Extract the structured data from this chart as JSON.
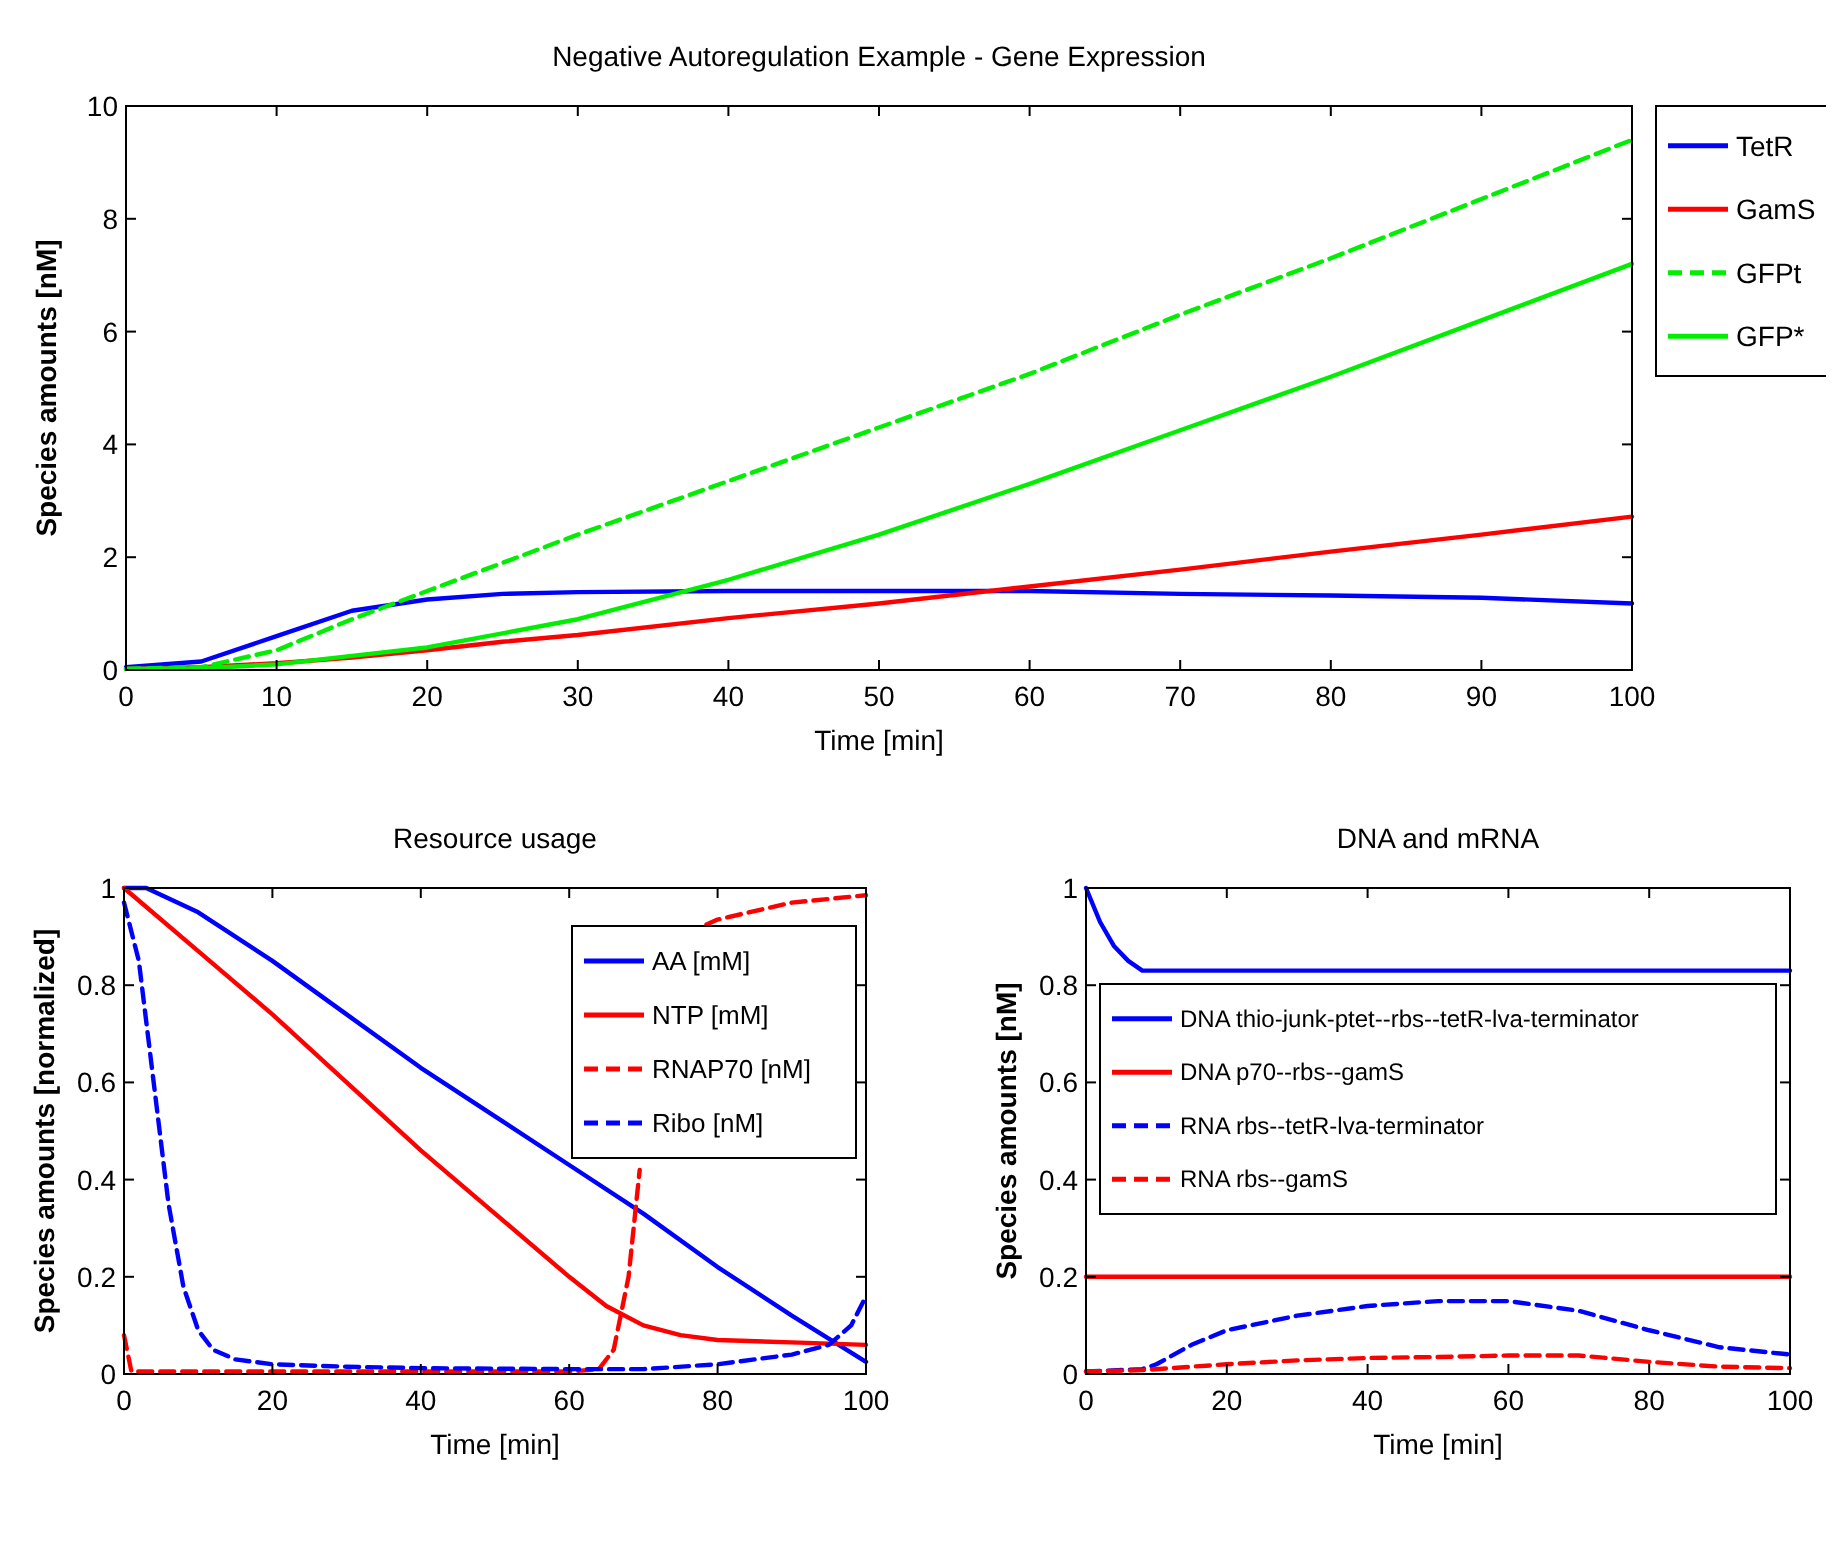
{
  "chart_data": [
    {
      "type": "line",
      "title": "Negative Autoregulation Example - Gene Expression",
      "xlabel": "Time [min]",
      "ylabel": "Species amounts [nM]",
      "xlim": [
        0,
        100
      ],
      "ylim": [
        0,
        10
      ],
      "xticks": [
        0,
        10,
        20,
        30,
        40,
        50,
        60,
        70,
        80,
        90,
        100
      ],
      "yticks": [
        0,
        2,
        4,
        6,
        8,
        10
      ],
      "legend": "right",
      "grid": false,
      "series": [
        {
          "name": "TetR",
          "color": "#0000ff",
          "line_style": "solid",
          "x": [
            0,
            5,
            10,
            15,
            20,
            25,
            30,
            40,
            50,
            60,
            70,
            80,
            90,
            100
          ],
          "values": [
            0.05,
            0.15,
            0.6,
            1.05,
            1.25,
            1.35,
            1.38,
            1.4,
            1.4,
            1.4,
            1.35,
            1.32,
            1.28,
            1.18
          ]
        },
        {
          "name": "GamS",
          "color": "#ff0000",
          "line_style": "solid",
          "x": [
            0,
            5,
            10,
            15,
            20,
            25,
            30,
            40,
            50,
            60,
            70,
            80,
            90,
            100
          ],
          "values": [
            0.02,
            0.05,
            0.12,
            0.22,
            0.35,
            0.5,
            0.62,
            0.92,
            1.18,
            1.48,
            1.78,
            2.1,
            2.4,
            2.72
          ]
        },
        {
          "name": "GFPt",
          "color": "#00ee00",
          "line_style": "dashed",
          "x": [
            0,
            5,
            10,
            15,
            20,
            25,
            30,
            40,
            50,
            60,
            70,
            80,
            90,
            100
          ],
          "values": [
            0.02,
            0.05,
            0.35,
            0.9,
            1.4,
            1.9,
            2.4,
            3.35,
            4.3,
            5.25,
            6.3,
            7.3,
            8.35,
            9.4
          ]
        },
        {
          "name": "GFP*",
          "color": "#00ee00",
          "line_style": "solid",
          "x": [
            0,
            5,
            10,
            15,
            20,
            25,
            30,
            40,
            50,
            60,
            70,
            80,
            90,
            100
          ],
          "values": [
            0.02,
            0.03,
            0.1,
            0.25,
            0.4,
            0.65,
            0.9,
            1.6,
            2.4,
            3.3,
            4.25,
            5.2,
            6.2,
            7.2
          ]
        }
      ]
    },
    {
      "type": "line",
      "title": "Resource usage",
      "xlabel": "Time [min]",
      "ylabel": "Species amounts [normalized]",
      "xlim": [
        0,
        100
      ],
      "ylim": [
        0,
        1
      ],
      "xticks": [
        0,
        20,
        40,
        60,
        80,
        100
      ],
      "yticks": [
        0,
        0.2,
        0.4,
        0.6,
        0.8,
        1
      ],
      "legend": "top right",
      "grid": false,
      "series": [
        {
          "name": "AA [mM]",
          "color": "#0000ff",
          "line_style": "solid",
          "x": [
            0,
            3,
            10,
            20,
            30,
            40,
            50,
            60,
            70,
            80,
            90,
            100
          ],
          "values": [
            1,
            1,
            0.95,
            0.85,
            0.74,
            0.63,
            0.53,
            0.43,
            0.33,
            0.22,
            0.12,
            0.025
          ]
        },
        {
          "name": "NTP [mM]",
          "color": "#ff0000",
          "line_style": "solid",
          "x": [
            0,
            10,
            20,
            30,
            40,
            50,
            60,
            65,
            70,
            75,
            80,
            90,
            100
          ],
          "values": [
            1,
            0.87,
            0.74,
            0.6,
            0.46,
            0.33,
            0.2,
            0.14,
            0.1,
            0.08,
            0.07,
            0.065,
            0.06
          ]
        },
        {
          "name": "RNAP70 [nM]",
          "color": "#ff0000",
          "line_style": "dashed",
          "x": [
            0,
            1,
            20,
            40,
            60,
            64,
            66,
            68,
            69.5,
            72,
            78.5,
            80,
            90,
            100
          ],
          "values": [
            0.08,
            0.005,
            0.005,
            0.005,
            0.005,
            0.01,
            0.05,
            0.2,
            0.42,
            null,
            0.925,
            0.935,
            0.97,
            0.985
          ]
        },
        {
          "name": "Ribo [nM]",
          "color": "#0000ff",
          "line_style": "dashed",
          "x": [
            0,
            2,
            4,
            6,
            8,
            10,
            12,
            15,
            20,
            30,
            40,
            60,
            70,
            80,
            90,
            95,
            98,
            100
          ],
          "values": [
            0.97,
            0.85,
            0.6,
            0.35,
            0.18,
            0.09,
            0.05,
            0.03,
            0.02,
            0.015,
            0.012,
            0.01,
            0.01,
            0.02,
            0.04,
            0.06,
            0.1,
            0.16
          ]
        }
      ]
    },
    {
      "type": "line",
      "title": "DNA and mRNA",
      "xlabel": "Time [min]",
      "ylabel": "Species amounts [nM]",
      "xlim": [
        0,
        100
      ],
      "ylim": [
        0,
        1
      ],
      "xticks": [
        0,
        20,
        40,
        60,
        80,
        100
      ],
      "yticks": [
        0,
        0.2,
        0.4,
        0.6,
        0.8,
        1
      ],
      "legend": "top",
      "grid": false,
      "series": [
        {
          "name": "DNA thio-junk-ptet--rbs--tetR-lva-terminator",
          "color": "#0000ff",
          "line_style": "solid",
          "x": [
            0,
            2,
            4,
            6,
            8,
            50,
            100
          ],
          "values": [
            1,
            0.93,
            0.88,
            0.85,
            0.83,
            0.83,
            0.83
          ]
        },
        {
          "name": "DNA p70--rbs--gamS",
          "color": "#ff0000",
          "line_style": "solid",
          "x": [
            0,
            50,
            100
          ],
          "values": [
            0.2,
            0.2,
            0.2
          ]
        },
        {
          "name": "RNA rbs--tetR-lva-terminator",
          "color": "#0000ff",
          "line_style": "dashed",
          "x": [
            0,
            8,
            10,
            15,
            20,
            30,
            40,
            50,
            60,
            70,
            80,
            90,
            100
          ],
          "values": [
            0.005,
            0.01,
            0.02,
            0.06,
            0.09,
            0.12,
            0.14,
            0.15,
            0.15,
            0.13,
            0.09,
            0.055,
            0.04
          ]
        },
        {
          "name": "RNA rbs--gamS",
          "color": "#ff0000",
          "line_style": "dashed",
          "x": [
            0,
            8,
            15,
            20,
            30,
            40,
            50,
            60,
            70,
            80,
            90,
            100
          ],
          "values": [
            0.005,
            0.008,
            0.015,
            0.02,
            0.028,
            0.033,
            0.035,
            0.038,
            0.038,
            0.025,
            0.015,
            0.012
          ]
        }
      ]
    }
  ]
}
